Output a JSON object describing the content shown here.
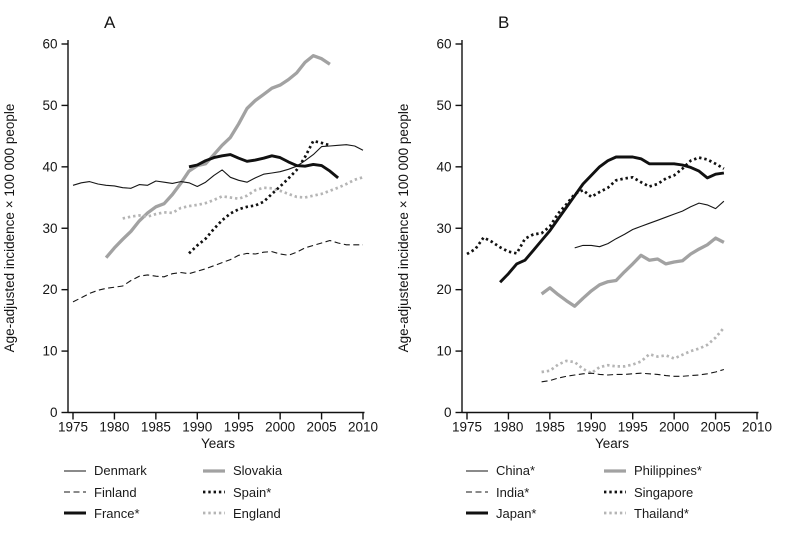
{
  "figure": {
    "y_axis_label": "Age-adjusted incidence × 100 000 people",
    "x_axis_label": "Years"
  },
  "chart_data": [
    {
      "type": "line",
      "panel": "A",
      "xlabel": "Years",
      "ylabel": "Age-adjusted incidence × 100 000 people",
      "xlim": [
        1975,
        2010
      ],
      "ylim": [
        0,
        60
      ],
      "x_ticks": [
        1975,
        1980,
        1985,
        1990,
        1995,
        2000,
        2005,
        2010
      ],
      "y_ticks": [
        0,
        10,
        20,
        30,
        40,
        50,
        60
      ],
      "grid": false,
      "legend_position": "below",
      "legend_columns": [
        {
          "x": 63,
          "items": [
            0,
            1,
            2
          ]
        },
        {
          "x": 202,
          "items": [
            3,
            4,
            5
          ]
        }
      ],
      "series": [
        {
          "name": "Denmark",
          "z": 4,
          "style": {
            "color": "#161616",
            "width": 1.1,
            "dash": ""
          },
          "x_start": 1975,
          "values": [
            37,
            37.4,
            37.6,
            37.2,
            37,
            36.9,
            36.6,
            36.5,
            37.1,
            37,
            37.7,
            37.5,
            37.3,
            37.6,
            37.4,
            36.8,
            37.5,
            38.6,
            39.5,
            38.3,
            37.8,
            37.5,
            38.2,
            38.8,
            39,
            39.2,
            39.6,
            40.1,
            41,
            42,
            43.3,
            43.4,
            43.5,
            43.6,
            43.4,
            42.7
          ]
        },
        {
          "name": "Finland",
          "z": 3,
          "style": {
            "color": "#161616",
            "width": 1.1,
            "dash": "6 3.5"
          },
          "x_start": 1975,
          "values": [
            18,
            18.7,
            19.4,
            19.9,
            20.2,
            20.4,
            20.6,
            21.5,
            22.2,
            22.4,
            22.2,
            22.1,
            22.6,
            22.8,
            22.6,
            23,
            23.4,
            23.9,
            24.4,
            24.9,
            25.6,
            25.9,
            25.8,
            26.1,
            26.2,
            25.8,
            25.6,
            26.1,
            26.8,
            27.2,
            27.6,
            28,
            27.6,
            27.3,
            27.3,
            27.3
          ]
        },
        {
          "name": "France*",
          "z": 6,
          "style": {
            "color": "#111111",
            "width": 2.9,
            "dash": ""
          },
          "x_start": 1989,
          "values": [
            40,
            40.3,
            41,
            41.5,
            41.8,
            42,
            41.4,
            40.9,
            41.1,
            41.4,
            41.8,
            41.5,
            40.8,
            40.2,
            40.1,
            40.4,
            40.2,
            39.3,
            38.2
          ]
        },
        {
          "name": "Slovakia",
          "z": 1,
          "style": {
            "color": "#a2a2a2",
            "width": 3.3,
            "dash": ""
          },
          "x_start": 1979,
          "values": [
            25.2,
            26.8,
            28.2,
            29.5,
            31.2,
            32.5,
            33.5,
            34,
            35.5,
            37.3,
            39.3,
            40.2,
            40.5,
            42,
            43.5,
            44.8,
            47,
            49.5,
            50.8,
            51.8,
            52.8,
            53.3,
            54.2,
            55.3,
            57,
            58.1,
            57.6,
            56.7
          ]
        },
        {
          "name": "Spain*",
          "z": 5,
          "style": {
            "color": "#111111",
            "width": 2.7,
            "dash": "2.4 2.9"
          },
          "x_start": 1989,
          "values": [
            25.9,
            27.2,
            28.3,
            29.9,
            31.3,
            32.4,
            33.1,
            33.5,
            33.7,
            34.3,
            35.6,
            36.8,
            38.1,
            39.5,
            41.6,
            44.2,
            43.9,
            43.5
          ]
        },
        {
          "name": "England",
          "z": 2,
          "style": {
            "color": "#b5b5b5",
            "width": 2.7,
            "dash": "2.4 2.9"
          },
          "x_start": 1981,
          "values": [
            31.6,
            31.9,
            32.1,
            31.9,
            32.3,
            32.6,
            32.5,
            33.3,
            33.6,
            33.8,
            34.1,
            34.6,
            35.2,
            35,
            34.8,
            35.3,
            36.2,
            36.6,
            36.5,
            36.1,
            35.6,
            35.1,
            35,
            35.3,
            35.6,
            36.1,
            36.6,
            37.2,
            37.9,
            38.3
          ]
        }
      ]
    },
    {
      "type": "line",
      "panel": "B",
      "xlabel": "Years",
      "ylabel": "Age-adjusted incidence × 100 000 people",
      "xlim": [
        1975,
        2010
      ],
      "ylim": [
        0,
        60
      ],
      "x_ticks": [
        1975,
        1980,
        1985,
        1990,
        1995,
        2000,
        2005,
        2010
      ],
      "y_ticks": [
        0,
        10,
        20,
        30,
        40,
        50,
        60
      ],
      "grid": false,
      "legend_position": "below",
      "legend_columns": [
        {
          "x": 71,
          "items": [
            0,
            1,
            2
          ]
        },
        {
          "x": 209,
          "items": [
            3,
            4,
            5
          ]
        }
      ],
      "series": [
        {
          "name": "China*",
          "z": 4,
          "style": {
            "color": "#161616",
            "width": 1.1,
            "dash": ""
          },
          "x_start": 1988,
          "values": [
            26.8,
            27.2,
            27.2,
            27,
            27.5,
            28.3,
            29,
            29.8,
            30.3,
            30.8,
            31.3,
            31.8,
            32.3,
            32.8,
            33.5,
            34.1,
            33.8,
            33.2,
            34.4
          ]
        },
        {
          "name": "India*",
          "z": 3,
          "style": {
            "color": "#161616",
            "width": 1.1,
            "dash": "6 3.5"
          },
          "x_start": 1984,
          "values": [
            5,
            5.2,
            5.6,
            5.9,
            6.1,
            6.3,
            6.4,
            6.2,
            6.1,
            6.2,
            6.2,
            6.3,
            6.4,
            6.3,
            6.2,
            6,
            5.9,
            5.9,
            6,
            6.1,
            6.3,
            6.6,
            7
          ]
        },
        {
          "name": "Japan*",
          "z": 6,
          "style": {
            "color": "#111111",
            "width": 2.9,
            "dash": ""
          },
          "x_start": 1979,
          "values": [
            21.2,
            22.6,
            24.2,
            24.8,
            26.4,
            28,
            29.6,
            31.5,
            33.4,
            35.3,
            37.2,
            38.6,
            40,
            41,
            41.6,
            41.6,
            41.6,
            41.3,
            40.5,
            40.5,
            40.5,
            40.5,
            40.3,
            39.9,
            39.3,
            38.2,
            38.8,
            39
          ]
        },
        {
          "name": "Philippines*",
          "z": 1,
          "style": {
            "color": "#a2a2a2",
            "width": 3.3,
            "dash": ""
          },
          "x_start": 1984,
          "values": [
            19.3,
            20.3,
            19.2,
            18.2,
            17.3,
            18.6,
            19.8,
            20.8,
            21.3,
            21.5,
            22.9,
            24.2,
            25.6,
            24.8,
            25,
            24.2,
            24.5,
            24.7,
            25.8,
            26.6,
            27.3,
            28.4,
            27.7
          ]
        },
        {
          "name": "Singapore",
          "z": 5,
          "style": {
            "color": "#111111",
            "width": 2.7,
            "dash": "2.4 2.9"
          },
          "x_start": 1975,
          "values": [
            25.8,
            26.6,
            28.5,
            27.8,
            26.9,
            26.2,
            25.9,
            28.3,
            29,
            29.2,
            30.3,
            32.4,
            33.9,
            35.6,
            36.2,
            35.1,
            35.9,
            36.6,
            37.8,
            38.1,
            38.3,
            37.5,
            36.8,
            37.2,
            38.1,
            38.6,
            39.7,
            41,
            41.5,
            41.2,
            40.5,
            39.7
          ]
        },
        {
          "name": "Thailand*",
          "z": 2,
          "style": {
            "color": "#b5b5b5",
            "width": 2.7,
            "dash": "2.4 2.9"
          },
          "x_start": 1984,
          "values": [
            6.6,
            6.8,
            7.8,
            8.4,
            8.2,
            7.1,
            6.4,
            7.4,
            7.7,
            7.5,
            7.5,
            7.8,
            8.3,
            9.5,
            9.1,
            9.3,
            8.8,
            9.4,
            10,
            10.4,
            11,
            12.2,
            13.8
          ]
        }
      ]
    }
  ]
}
